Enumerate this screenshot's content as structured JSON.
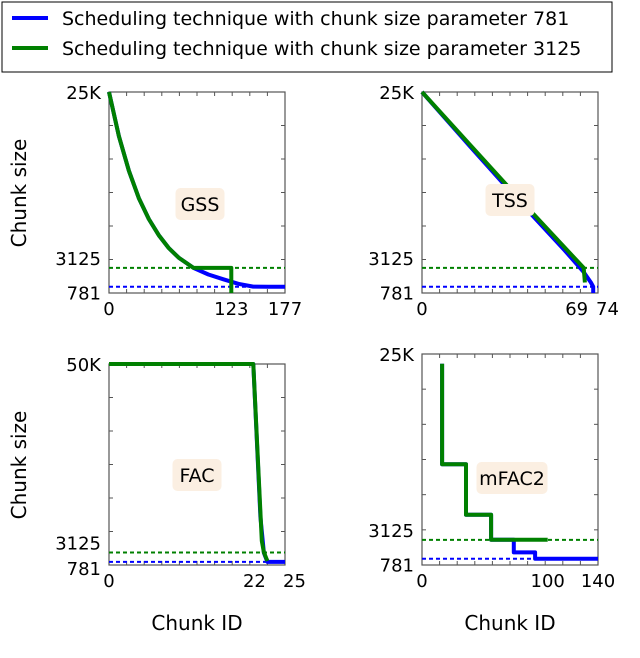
{
  "chart_data": [
    {
      "type": "line",
      "title": "GSS",
      "xlabel": "",
      "ylabel": "Chunk size",
      "xlim": [
        0,
        177
      ],
      "ylim": [
        0,
        25000
      ],
      "x_ticks": [
        "0",
        "123",
        "177"
      ],
      "x_tick_values": [
        0,
        123,
        177
      ],
      "y_ticks": [
        "781",
        "3125",
        "25K"
      ],
      "y_tick_values": [
        781,
        3125,
        25000
      ],
      "series": [
        {
          "name": "Scheduling technique with chunk size parameter 781",
          "color": "#0000ff",
          "points": [
            [
              0,
              25000
            ],
            [
              10,
              19500
            ],
            [
              20,
              15200
            ],
            [
              30,
              11800
            ],
            [
              40,
              9200
            ],
            [
              50,
              7200
            ],
            [
              60,
              5600
            ],
            [
              70,
              4400
            ],
            [
              85,
              3125
            ],
            [
              100,
              2300
            ],
            [
              115,
              1700
            ],
            [
              130,
              1150
            ],
            [
              145,
              800
            ],
            [
              160,
              781
            ],
            [
              177,
              781
            ]
          ]
        },
        {
          "name": "Scheduling technique with chunk size parameter 3125",
          "color": "#008000",
          "points": [
            [
              0,
              25000
            ],
            [
              10,
              19500
            ],
            [
              20,
              15200
            ],
            [
              30,
              11800
            ],
            [
              40,
              9200
            ],
            [
              50,
              7200
            ],
            [
              60,
              5600
            ],
            [
              70,
              4400
            ],
            [
              85,
              3125
            ],
            [
              123,
              3125
            ],
            [
              123,
              0
            ]
          ]
        }
      ],
      "reference_lines": [
        {
          "value": 3125,
          "color": "#008000"
        },
        {
          "value": 781,
          "color": "#0000ff"
        }
      ]
    },
    {
      "type": "line",
      "title": "TSS",
      "xlabel": "",
      "ylabel": "",
      "xlim": [
        0,
        74
      ],
      "ylim": [
        0,
        25000
      ],
      "x_ticks": [
        "0",
        "69",
        "74"
      ],
      "x_tick_values": [
        0,
        69,
        74
      ],
      "y_ticks": [
        "781",
        "3125",
        "25K"
      ],
      "y_tick_values": [
        781,
        3125,
        25000
      ],
      "series": [
        {
          "name": "Scheduling technique with chunk size parameter 781",
          "color": "#0000ff",
          "points": [
            [
              0,
              25000
            ],
            [
              20,
              18300
            ],
            [
              40,
              11700
            ],
            [
              60,
              5300
            ],
            [
              68,
              2600
            ],
            [
              71,
              1300
            ],
            [
              72,
              781
            ],
            [
              72,
              0
            ]
          ]
        },
        {
          "name": "Scheduling technique with chunk size parameter 3125",
          "color": "#008000",
          "points": [
            [
              0,
              25000
            ],
            [
              20,
              18500
            ],
            [
              40,
              12000
            ],
            [
              68,
              3125
            ],
            [
              68.5,
              1300
            ]
          ]
        }
      ],
      "reference_lines": [
        {
          "value": 3125,
          "color": "#008000"
        },
        {
          "value": 781,
          "color": "#0000ff"
        }
      ]
    },
    {
      "type": "line",
      "title": "FAC",
      "xlabel": "Chunk ID",
      "ylabel": "Chunk size",
      "xlim": [
        0,
        25
      ],
      "ylim": [
        0,
        50000
      ],
      "x_ticks": [
        "0",
        "22",
        "25"
      ],
      "x_tick_values": [
        0,
        22,
        25
      ],
      "y_ticks": [
        "781",
        "3125",
        "50K"
      ],
      "y_tick_values": [
        781,
        3125,
        50000
      ],
      "series": [
        {
          "name": "Scheduling technique with chunk size parameter 781",
          "color": "#0000ff",
          "points": [
            [
              0,
              50000
            ],
            [
              20.5,
              50000
            ],
            [
              21.5,
              12000
            ],
            [
              22,
              3000
            ],
            [
              22.5,
              781
            ],
            [
              25,
              781
            ]
          ]
        },
        {
          "name": "Scheduling technique with chunk size parameter 3125",
          "color": "#008000",
          "points": [
            [
              0,
              50000
            ],
            [
              20.5,
              50000
            ],
            [
              21.7,
              6000
            ],
            [
              22,
              3125
            ],
            [
              22.5,
              1000
            ]
          ]
        }
      ],
      "reference_lines": [
        {
          "value": 3125,
          "color": "#008000"
        },
        {
          "value": 781,
          "color": "#0000ff"
        }
      ]
    },
    {
      "type": "line",
      "title": "mFAC2",
      "xlabel": "Chunk ID",
      "ylabel": "",
      "xlim": [
        0,
        140
      ],
      "ylim": [
        0,
        26200
      ],
      "x_ticks": [
        "0",
        "100",
        "140"
      ],
      "x_tick_values": [
        0,
        100,
        140
      ],
      "y_ticks": [
        "781",
        "3125",
        "25K"
      ],
      "y_tick_values": [
        781,
        3125,
        25000
      ],
      "series": [
        {
          "name": "Scheduling technique with chunk size parameter 781",
          "color": "#0000ff",
          "points": [
            [
              16,
              25000
            ],
            [
              16,
              12500
            ],
            [
              35,
              12500
            ],
            [
              35,
              6250
            ],
            [
              55,
              6250
            ],
            [
              55,
              3125
            ],
            [
              73,
              3125
            ],
            [
              73,
              1562
            ],
            [
              90,
              1562
            ],
            [
              90,
              781
            ],
            [
              140,
              781
            ]
          ]
        },
        {
          "name": "Scheduling technique with chunk size parameter 3125",
          "color": "#008000",
          "points": [
            [
              16,
              25000
            ],
            [
              16,
              12500
            ],
            [
              35,
              12500
            ],
            [
              35,
              6250
            ],
            [
              55,
              6250
            ],
            [
              55,
              3125
            ],
            [
              100,
              3125
            ]
          ]
        }
      ],
      "reference_lines": [
        {
          "value": 3125,
          "color": "#008000"
        },
        {
          "value": 781,
          "color": "#0000ff"
        }
      ]
    }
  ],
  "legend": {
    "placement": "top",
    "entries": [
      {
        "label": "Scheduling technique with chunk size parameter 781",
        "color": "#0000ff"
      },
      {
        "label": "Scheduling technique with chunk size parameter 3125",
        "color": "#008000"
      }
    ]
  },
  "label_box_color": "#fbefe2"
}
